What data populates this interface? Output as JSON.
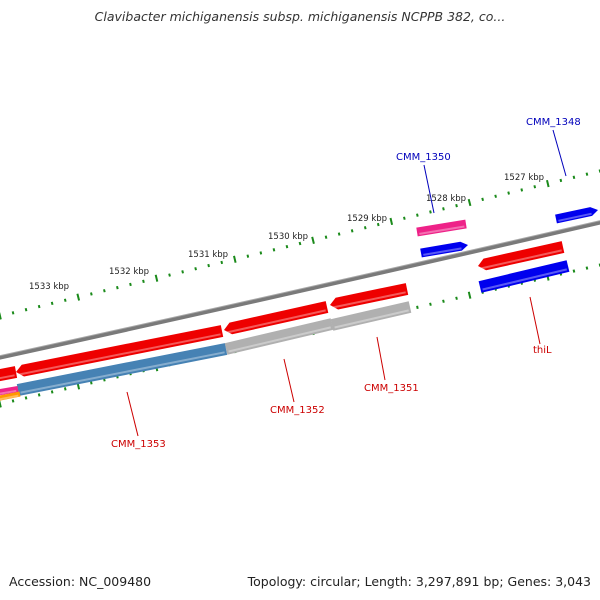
{
  "title": "Clavibacter michiganensis subsp. michiganensis NCPPB 382, co...",
  "footer": {
    "accession": "Accession: NC_009480",
    "summary": "Topology: circular; Length: 3,297,891 bp; Genes: 3,043"
  },
  "colors": {
    "backbone": "#808080",
    "ticks": "#1a8a1a",
    "gene_label_red": "#cc0000",
    "gene_label_blue": "#0000bb",
    "feature_red": "#ee0000",
    "feature_blue": "#0000ee",
    "feature_pink": "#ee2288",
    "feature_gray": "#b0b0b0",
    "feature_steel": "#4682b4",
    "feature_orange": "#ff9900"
  },
  "ruler": {
    "labels": [
      "1527 kbp",
      "1528 kbp",
      "1529 kbp",
      "1530 kbp",
      "1531 kbp",
      "1532 kbp",
      "1533 kbp"
    ]
  },
  "gene_labels": [
    {
      "text": "CMM_1348",
      "color": "blue"
    },
    {
      "text": "CMM_1350",
      "color": "blue"
    },
    {
      "text": "thiL",
      "color": "red"
    },
    {
      "text": "CMM_1351",
      "color": "red"
    },
    {
      "text": "CMM_1352",
      "color": "red"
    },
    {
      "text": "CMM_1353",
      "color": "red"
    }
  ]
}
